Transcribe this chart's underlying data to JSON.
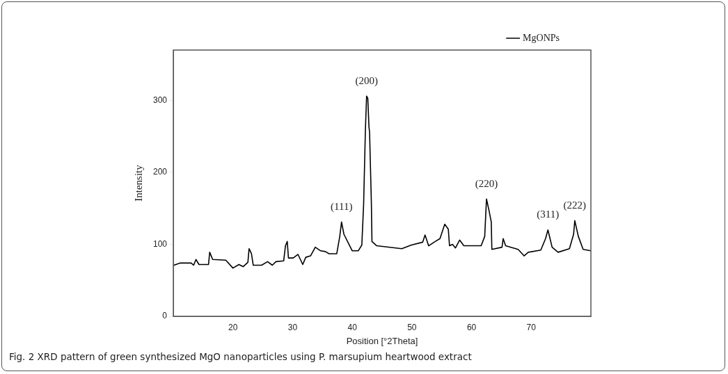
{
  "chart_data": {
    "type": "line",
    "xlabel": "Position [°2Theta]",
    "ylabel": "Intensity",
    "xlim": [
      10,
      80
    ],
    "ylim": [
      0,
      370
    ],
    "xticks": [
      20,
      30,
      40,
      50,
      60,
      70
    ],
    "yticks": [
      0,
      100,
      200,
      300
    ],
    "grid": false,
    "legend": "top right",
    "marker": "none",
    "line_style": "solid",
    "series": [
      {
        "name": "MgONPs",
        "color": "#000000",
        "x": [
          10.1,
          11.1,
          13,
          13.4,
          13.8,
          14.3,
          15.9,
          16.1,
          16.6,
          18.8,
          20,
          21,
          21.7,
          22.5,
          22.7,
          23.1,
          23.4,
          24.8,
          25.8,
          26.6,
          27.2,
          28.5,
          28.8,
          29.1,
          29.3,
          30.1,
          30.9,
          31.7,
          32.2,
          33,
          33.8,
          34.7,
          35.5,
          36.1,
          37.4,
          37.9,
          38.2,
          38.6,
          40,
          41,
          41.6,
          41.9,
          42.2,
          42.4,
          42.6,
          42.8,
          42.9,
          43.2,
          43.3,
          44.1,
          48.3,
          49.9,
          51.8,
          52.2,
          52.8,
          53.9,
          54.7,
          55.5,
          56.1,
          56.3,
          56.8,
          57.3,
          58,
          58.7,
          61.6,
          62.2,
          62.5,
          62.9,
          63.3,
          63.4,
          65.1,
          65.3,
          65.7,
          67.8,
          68.8,
          69.5,
          71.6,
          72.4,
          72.8,
          73.5,
          74.5,
          76.4,
          77.1,
          77.3,
          77.9,
          78.7,
          80
        ],
        "values": [
          71,
          74,
          74,
          71,
          79,
          72,
          72,
          89,
          79,
          78,
          67,
          72,
          69,
          75,
          94,
          87,
          71,
          71,
          76,
          71,
          76,
          77,
          98,
          104,
          81,
          81,
          86,
          72,
          82,
          84,
          96,
          91,
          90,
          87,
          87,
          111,
          131,
          114,
          91,
          91,
          99,
          155,
          259,
          306,
          303,
          263,
          256,
          158,
          104,
          98,
          94,
          99,
          103,
          113,
          98,
          104,
          108,
          128,
          121,
          98,
          100,
          95,
          106,
          98,
          98,
          111,
          163,
          148,
          131,
          93,
          96,
          108,
          98,
          93,
          84,
          89,
          92,
          108,
          120,
          96,
          89,
          94,
          114,
          133,
          111,
          93,
          91
        ]
      }
    ],
    "annotations": [
      {
        "text": "(111)",
        "x": 38.2,
        "y": 131
      },
      {
        "text": "(200)",
        "x": 42.4,
        "y": 306
      },
      {
        "text": "(220)",
        "x": 62.5,
        "y": 163
      },
      {
        "text": "(311)",
        "x": 72.8,
        "y": 120
      },
      {
        "text": "(222)",
        "x": 77.3,
        "y": 133
      },
      "Fig. 2 XRD pattern of green synthesized MgO nanoparticles using P. marsupium heartwood extract"
    ]
  }
}
